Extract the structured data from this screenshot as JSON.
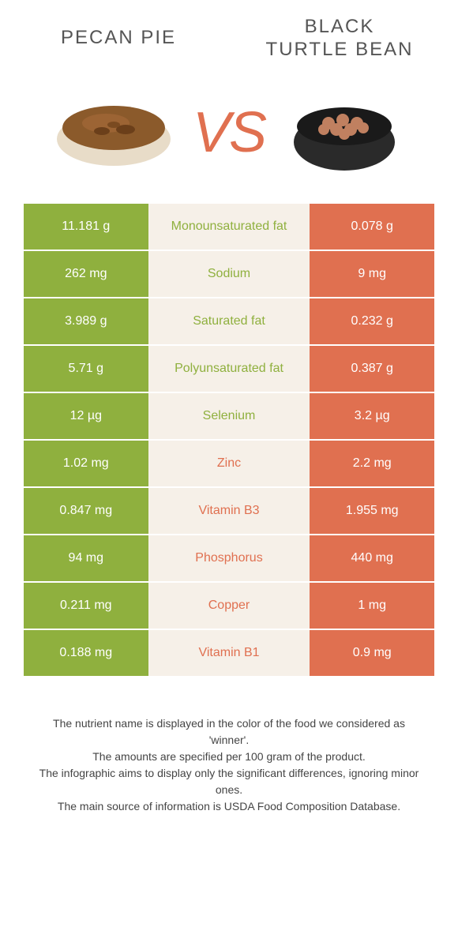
{
  "header": {
    "left_title": "Pecan pie",
    "right_title": "Black\nTurtle Bean",
    "vs_label": "VS"
  },
  "colors": {
    "left_cell": "#8fb03e",
    "right_cell": "#e07050",
    "mid_cell": "#f6f0e8",
    "left_label": "#8fb03e",
    "right_label": "#e07050"
  },
  "rows": [
    {
      "left": "11.181 g",
      "name": "Monounsaturated fat",
      "right": "0.078 g",
      "winner": "left"
    },
    {
      "left": "262 mg",
      "name": "Sodium",
      "right": "9 mg",
      "winner": "left"
    },
    {
      "left": "3.989 g",
      "name": "Saturated fat",
      "right": "0.232 g",
      "winner": "left"
    },
    {
      "left": "5.71 g",
      "name": "Polyunsaturated fat",
      "right": "0.387 g",
      "winner": "left"
    },
    {
      "left": "12 µg",
      "name": "Selenium",
      "right": "3.2 µg",
      "winner": "left"
    },
    {
      "left": "1.02 mg",
      "name": "Zinc",
      "right": "2.2 mg",
      "winner": "right"
    },
    {
      "left": "0.847 mg",
      "name": "Vitamin B3",
      "right": "1.955 mg",
      "winner": "right"
    },
    {
      "left": "94 mg",
      "name": "Phosphorus",
      "right": "440 mg",
      "winner": "right"
    },
    {
      "left": "0.211 mg",
      "name": "Copper",
      "right": "1 mg",
      "winner": "right"
    },
    {
      "left": "0.188 mg",
      "name": "Vitamin B1",
      "right": "0.9 mg",
      "winner": "right"
    }
  ],
  "footer": {
    "line1": "The nutrient name is displayed in the color of the food we considered as 'winner'.",
    "line2": "The amounts are specified per 100 gram of the product.",
    "line3": "The infographic aims to display only the significant differences, ignoring minor ones.",
    "line4": "The main source of information is USDA Food Composition Database."
  }
}
